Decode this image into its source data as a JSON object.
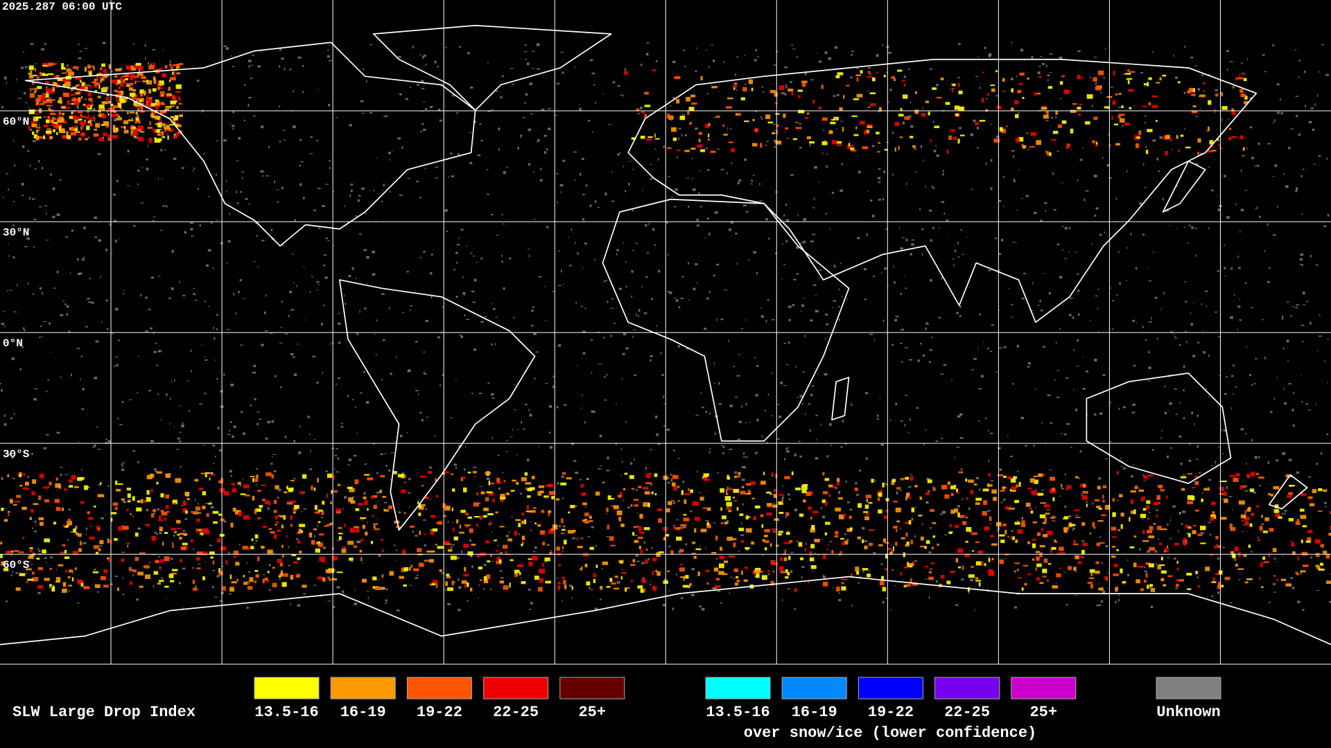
{
  "timestamp": "2025.287 06:00 UTC",
  "lat_labels": [
    "60°N",
    "30°N",
    "0°N",
    "30°S",
    "60°S"
  ],
  "legend": {
    "title": "SLW Large Drop Index",
    "groups": [
      {
        "items": [
          {
            "label": "13.5-16",
            "color": "#ffff00"
          },
          {
            "label": "16-19",
            "color": "#ff9900"
          },
          {
            "label": "19-22",
            "color": "#ff5500"
          },
          {
            "label": "22-25",
            "color": "#ee0000"
          },
          {
            "label": "25+",
            "color": "#660000"
          }
        ]
      },
      {
        "items": [
          {
            "label": "13.5-16",
            "color": "#00ffff"
          },
          {
            "label": "16-19",
            "color": "#0088ff"
          },
          {
            "label": "19-22",
            "color": "#0000ff"
          },
          {
            "label": "22-25",
            "color": "#7700ee"
          },
          {
            "label": "25+",
            "color": "#cc00cc"
          }
        ],
        "caption": "over snow/ice (lower confidence)"
      }
    ],
    "unknown": {
      "label": "Unknown",
      "color": "#808080"
    }
  }
}
